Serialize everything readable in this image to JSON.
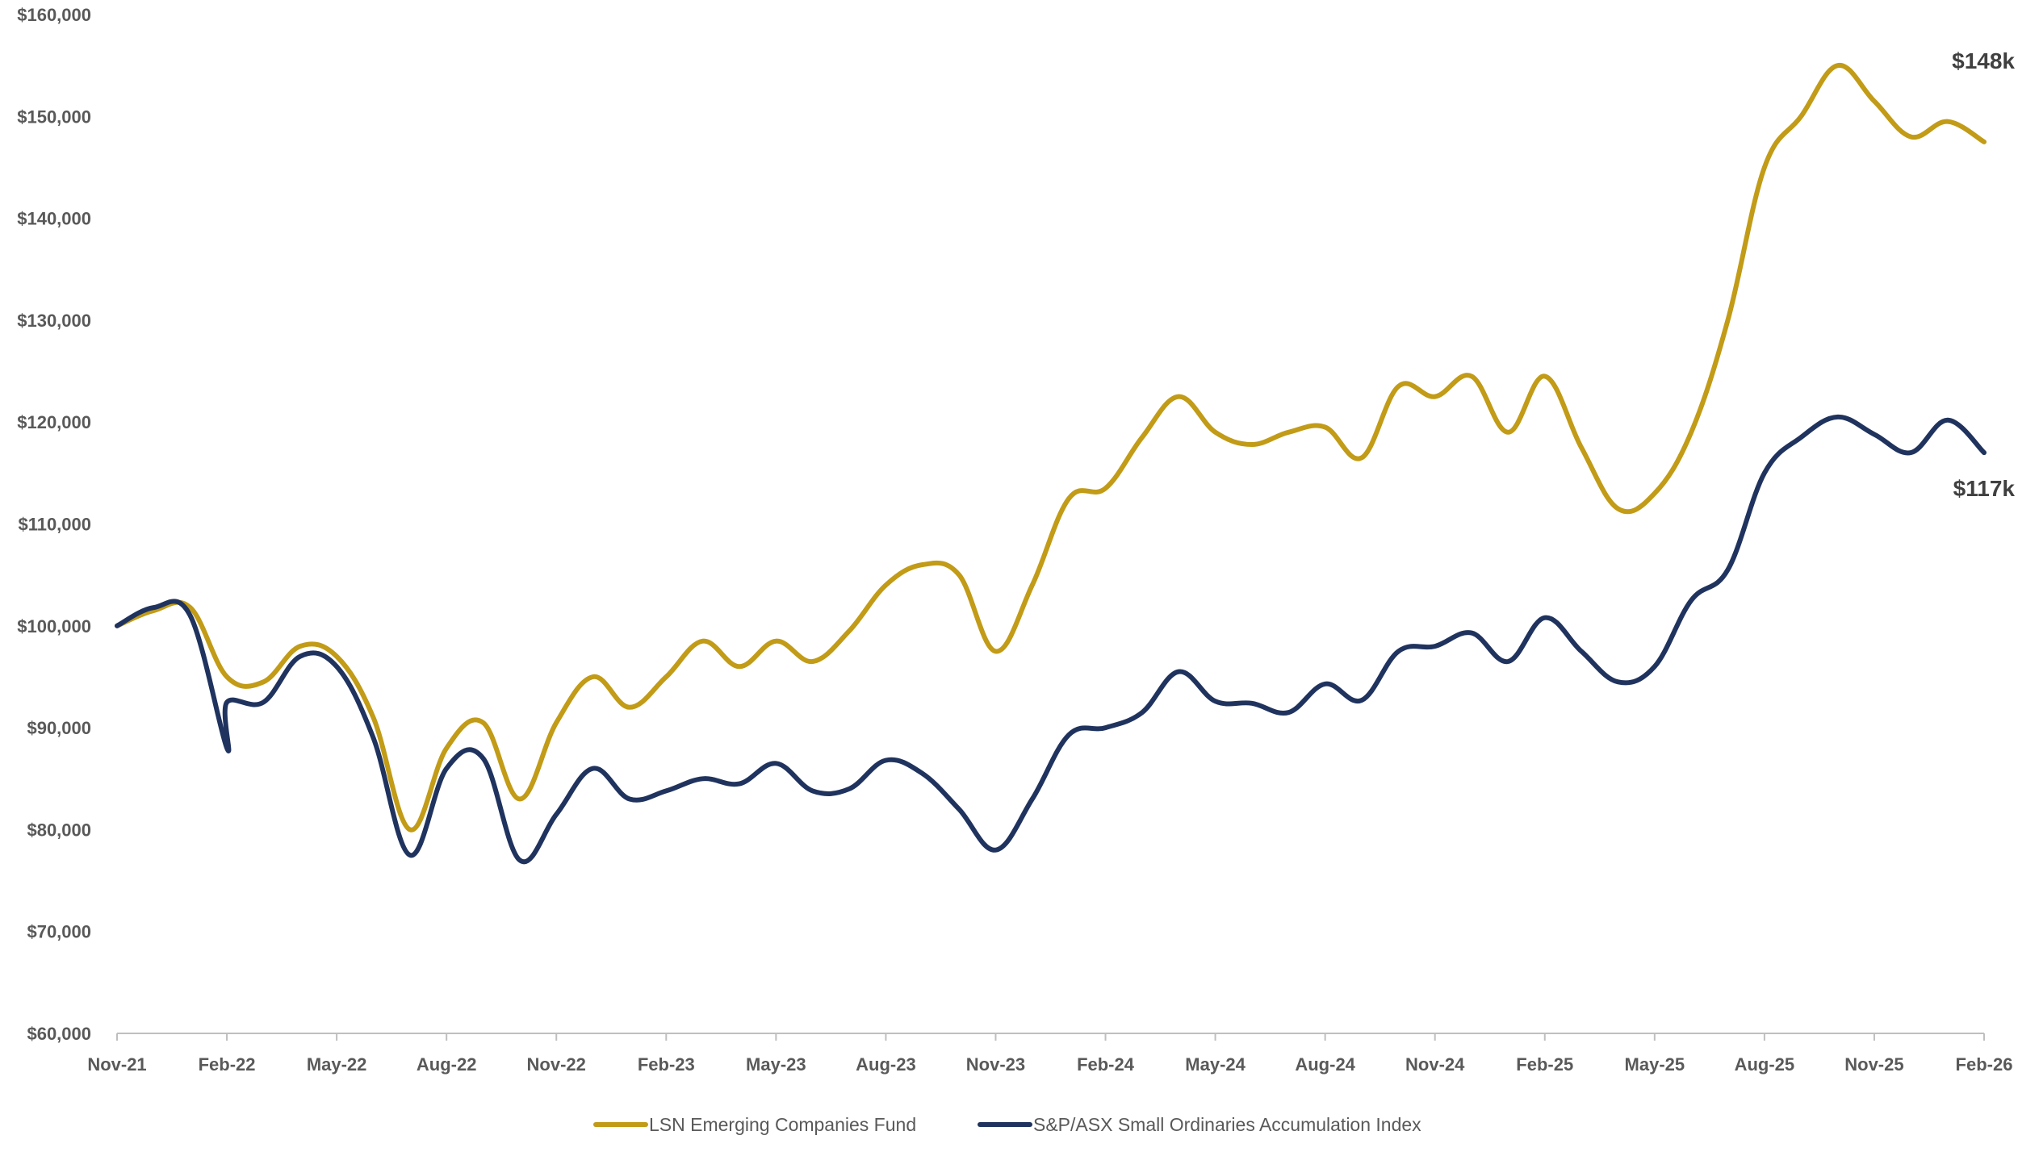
{
  "chart_data": {
    "type": "line",
    "title": "",
    "xlabel": "",
    "ylabel": "",
    "ylim": [
      60000,
      160000
    ],
    "yticks": [
      {
        "value": 60000,
        "label": "$60,000"
      },
      {
        "value": 70000,
        "label": "$70,000"
      },
      {
        "value": 80000,
        "label": "$80,000"
      },
      {
        "value": 90000,
        "label": "$90,000"
      },
      {
        "value": 100000,
        "label": "$100,000"
      },
      {
        "value": 110000,
        "label": "$110,000"
      },
      {
        "value": 120000,
        "label": "$120,000"
      },
      {
        "value": 130000,
        "label": "$130,000"
      },
      {
        "value": 140000,
        "label": "$140,000"
      },
      {
        "value": 150000,
        "label": "$150,000"
      },
      {
        "value": 160000,
        "label": "$160,000"
      }
    ],
    "xrange": [
      "Nov-21",
      "Feb-26"
    ],
    "xticks": [
      "Nov-21",
      "Feb-22",
      "May-22",
      "Aug-22",
      "Nov-22",
      "Feb-23",
      "May-23",
      "Aug-23",
      "Nov-23",
      "Feb-24",
      "May-24",
      "Aug-24",
      "Nov-24",
      "Feb-25",
      "May-25",
      "Aug-25",
      "Nov-25",
      "Feb-26"
    ],
    "grid": false,
    "legend_position": "bottom",
    "series": [
      {
        "name": "LSN Emerging Companies Fund",
        "color": "#C29B17",
        "end_label": "$148k",
        "points": [
          [
            "Nov-21",
            100000
          ],
          [
            "Dec-21",
            101500
          ],
          [
            "Jan-22",
            101800
          ],
          [
            "Feb-22",
            95000
          ],
          [
            "Mar-22",
            94500
          ],
          [
            "Apr-22",
            98000
          ],
          [
            "May-22",
            97000
          ],
          [
            "Jun-22",
            91000
          ],
          [
            "Jul-22",
            80000
          ],
          [
            "Aug-22",
            88000
          ],
          [
            "Sep-22",
            90500
          ],
          [
            "Oct-22",
            83000
          ],
          [
            "Nov-22",
            90500
          ],
          [
            "Dec-22",
            95000
          ],
          [
            "Jan-23",
            92000
          ],
          [
            "Feb-23",
            95000
          ],
          [
            "Mar-23",
            98500
          ],
          [
            "Apr-23",
            96000
          ],
          [
            "May-23",
            98500
          ],
          [
            "Jun-23",
            96500
          ],
          [
            "Jul-23",
            99500
          ],
          [
            "Aug-23",
            104000
          ],
          [
            "Sep-23",
            106000
          ],
          [
            "Oct-23",
            105000
          ],
          [
            "Nov-23",
            97500
          ],
          [
            "Dec-23",
            104000
          ],
          [
            "Jan-24",
            112500
          ],
          [
            "Feb-24",
            113500
          ],
          [
            "Mar-24",
            118500
          ],
          [
            "Apr-24",
            122500
          ],
          [
            "May-24",
            119000
          ],
          [
            "Jun-24",
            117800
          ],
          [
            "Jul-24",
            119000
          ],
          [
            "Aug-24",
            119500
          ],
          [
            "Sep-24",
            116500
          ],
          [
            "Oct-24",
            123500
          ],
          [
            "Nov-24",
            122500
          ],
          [
            "Dec-24",
            124500
          ],
          [
            "Jan-25",
            119000
          ],
          [
            "Feb-25",
            124500
          ],
          [
            "Mar-25",
            117500
          ],
          [
            "Apr-25",
            111500
          ],
          [
            "May-25",
            113000
          ],
          [
            "Jun-25",
            119000
          ],
          [
            "Jul-25",
            130000
          ],
          [
            "Aug-25",
            145000
          ],
          [
            "Sep-25",
            150000
          ],
          [
            "Oct-25",
            155000
          ],
          [
            "Nov-25",
            151500
          ],
          [
            "Dec-25",
            148000
          ],
          [
            "Jan-26",
            149500
          ],
          [
            "Feb-26",
            147500
          ]
        ]
      },
      {
        "name": "S&P/ASX Small Ordinaries Accumulation Index",
        "color": "#1F335E",
        "end_label": "$117k",
        "points": [
          [
            "Nov-21",
            100000
          ],
          [
            "Dec-21",
            101800
          ],
          [
            "Jan-22",
            101000
          ],
          [
            "Feb-22",
            88000
          ],
          [
            "Feb-22",
            92500
          ],
          [
            "Mar-22",
            92500
          ],
          [
            "Apr-22",
            97000
          ],
          [
            "May-22",
            96000
          ],
          [
            "Jun-22",
            89000
          ],
          [
            "Jul-22",
            77500
          ],
          [
            "Aug-22",
            86000
          ],
          [
            "Sep-22",
            87000
          ],
          [
            "Oct-22",
            77000
          ],
          [
            "Nov-22",
            81500
          ],
          [
            "Dec-22",
            86000
          ],
          [
            "Jan-23",
            83000
          ],
          [
            "Feb-23",
            83800
          ],
          [
            "Mar-23",
            85000
          ],
          [
            "Apr-23",
            84500
          ],
          [
            "May-23",
            86500
          ],
          [
            "Jun-23",
            83800
          ],
          [
            "Jul-23",
            84000
          ],
          [
            "Aug-23",
            86800
          ],
          [
            "Sep-23",
            85500
          ],
          [
            "Oct-23",
            82000
          ],
          [
            "Nov-23",
            78000
          ],
          [
            "Dec-23",
            83000
          ],
          [
            "Jan-24",
            89300
          ],
          [
            "Feb-24",
            90000
          ],
          [
            "Mar-24",
            91500
          ],
          [
            "Apr-24",
            95500
          ],
          [
            "May-24",
            92600
          ],
          [
            "Jun-24",
            92400
          ],
          [
            "Jul-24",
            91500
          ],
          [
            "Aug-24",
            94300
          ],
          [
            "Sep-24",
            92700
          ],
          [
            "Oct-24",
            97500
          ],
          [
            "Nov-24",
            98000
          ],
          [
            "Dec-24",
            99300
          ],
          [
            "Jan-25",
            96500
          ],
          [
            "Feb-25",
            100800
          ],
          [
            "Mar-25",
            97500
          ],
          [
            "Apr-25",
            94500
          ],
          [
            "May-25",
            96000
          ],
          [
            "Jun-25",
            102500
          ],
          [
            "Jul-25",
            105500
          ],
          [
            "Aug-25",
            115000
          ],
          [
            "Sep-25",
            118500
          ],
          [
            "Oct-25",
            120500
          ],
          [
            "Nov-25",
            118800
          ],
          [
            "Dec-25",
            117000
          ],
          [
            "Jan-26",
            120200
          ],
          [
            "Feb-26",
            117000
          ]
        ]
      }
    ]
  }
}
